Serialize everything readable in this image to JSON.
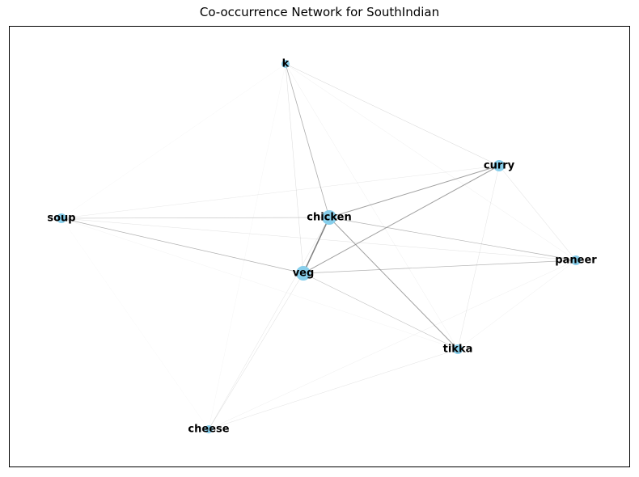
{
  "title": "Co-occurrence Network for SouthIndian",
  "node_color": "#87ceeb",
  "edge_color": "#808080",
  "nodes": [
    {
      "id": "k",
      "label": "k"
    },
    {
      "id": "curry",
      "label": "curry"
    },
    {
      "id": "soup",
      "label": "soup"
    },
    {
      "id": "chicken",
      "label": "chicken"
    },
    {
      "id": "paneer",
      "label": "paneer"
    },
    {
      "id": "veg",
      "label": "veg"
    },
    {
      "id": "tikka",
      "label": "tikka"
    },
    {
      "id": "cheese",
      "label": "cheese"
    }
  ],
  "edges": [
    {
      "source": "k",
      "target": "chicken",
      "weight": 0.8
    },
    {
      "source": "k",
      "target": "veg",
      "weight": 0.35
    },
    {
      "source": "k",
      "target": "curry",
      "weight": 0.4
    },
    {
      "source": "k",
      "target": "paneer",
      "weight": 0.2
    },
    {
      "source": "k",
      "target": "tikka",
      "weight": 0.2
    },
    {
      "source": "k",
      "target": "soup",
      "weight": 0.12
    },
    {
      "source": "k",
      "target": "cheese",
      "weight": 0.12
    },
    {
      "source": "curry",
      "target": "chicken",
      "weight": 1.0
    },
    {
      "source": "curry",
      "target": "veg",
      "weight": 1.0
    },
    {
      "source": "curry",
      "target": "soup",
      "weight": 0.25
    },
    {
      "source": "curry",
      "target": "paneer",
      "weight": 0.35
    },
    {
      "source": "curry",
      "target": "tikka",
      "weight": 0.3
    },
    {
      "source": "soup",
      "target": "chicken",
      "weight": 0.55
    },
    {
      "source": "soup",
      "target": "veg",
      "weight": 0.75
    },
    {
      "source": "soup",
      "target": "paneer",
      "weight": 0.3
    },
    {
      "source": "soup",
      "target": "tikka",
      "weight": 0.15
    },
    {
      "source": "soup",
      "target": "cheese",
      "weight": 0.1
    },
    {
      "source": "chicken",
      "target": "veg",
      "weight": 1.5
    },
    {
      "source": "chicken",
      "target": "paneer",
      "weight": 0.7
    },
    {
      "source": "chicken",
      "target": "tikka",
      "weight": 1.0
    },
    {
      "source": "chicken",
      "target": "cheese",
      "weight": 0.3
    },
    {
      "source": "veg",
      "target": "paneer",
      "weight": 0.7
    },
    {
      "source": "veg",
      "target": "tikka",
      "weight": 0.55
    },
    {
      "source": "veg",
      "target": "cheese",
      "weight": 0.35
    },
    {
      "source": "paneer",
      "target": "tikka",
      "weight": 0.2
    },
    {
      "source": "paneer",
      "target": "cheese",
      "weight": 0.2
    },
    {
      "source": "tikka",
      "target": "cheese",
      "weight": 0.3
    }
  ]
}
